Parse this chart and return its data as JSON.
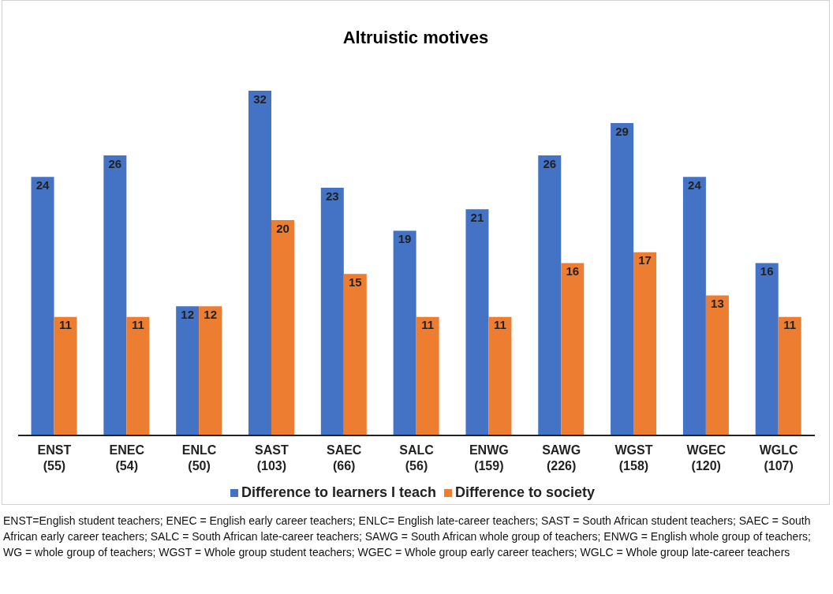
{
  "chart_data": {
    "type": "bar",
    "title": "Altruistic motives",
    "categories": [
      "ENST (55)",
      "ENEC (54)",
      "ENLC (50)",
      "SAST (103)",
      "SAEC (66)",
      "SALC (56)",
      "ENWG (159)",
      "SAWG (226)",
      "WGST (158)",
      "WGEC (120)",
      "WGLC (107)"
    ],
    "series": [
      {
        "name": "Difference to learners I teach",
        "color": "#4472c4",
        "values": [
          24,
          26,
          12,
          32,
          23,
          19,
          21,
          26,
          29,
          24,
          16
        ]
      },
      {
        "name": "Difference to society",
        "color": "#ed7d31",
        "values": [
          11,
          11,
          12,
          20,
          15,
          11,
          11,
          16,
          17,
          13,
          11
        ]
      }
    ],
    "tick_labels": "x",
    "data_labels": true,
    "legend": "bottom",
    "annotations": [
      "ENST=English student teachers; ENEC = English early career teachers; ENLC= English late-career teachers; SAST = South African student teachers; SAEC = South African early career teachers; SALC = South African late-career teachers; SAWG = South African whole group of teachers; ENWG = English whole group of teachers; WG = whole group of teachers; WGST = Whole group student teachers; WGEC = Whole group early career teachers; WGLC = Whole group late-career teachers"
    ]
  }
}
